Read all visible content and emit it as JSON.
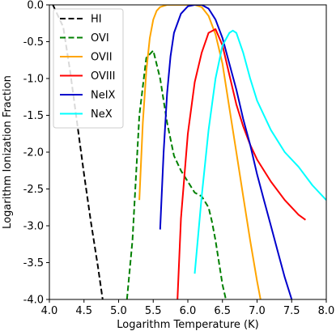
{
  "chart_data": {
    "type": "line",
    "xlabel": "Logarithm Temperature (K)",
    "ylabel": "Logarithm Ionization Fraction",
    "xlim": [
      4.0,
      8.0
    ],
    "ylim": [
      -4.0,
      0.0
    ],
    "xticks": [
      "4.0",
      "4.5",
      "5.0",
      "5.5",
      "6.0",
      "6.5",
      "7.0",
      "7.5",
      "8.0"
    ],
    "yticks": [
      "0.0",
      "-0.5",
      "-1.0",
      "-1.5",
      "-2.0",
      "-2.5",
      "-3.0",
      "-3.5",
      "-4.0"
    ],
    "grid": false,
    "legend_position": "top-left",
    "series": [
      {
        "name": "HI",
        "color": "#000000",
        "style": "dashed",
        "x": [
          4.05,
          4.2,
          4.3,
          4.4,
          4.5,
          4.6,
          4.7,
          4.77
        ],
        "y": [
          0.0,
          -0.3,
          -0.9,
          -1.6,
          -2.3,
          -2.95,
          -3.55,
          -4.0
        ]
      },
      {
        "name": "OVI",
        "color": "#008000",
        "style": "dashed",
        "x": [
          5.12,
          5.2,
          5.3,
          5.4,
          5.5,
          5.6,
          5.7,
          5.8,
          5.9,
          6.0,
          6.1,
          6.2,
          6.3,
          6.35,
          6.4,
          6.45,
          6.5,
          6.55
        ],
        "y": [
          -4.0,
          -3.2,
          -1.5,
          -0.72,
          -0.62,
          -1.0,
          -1.6,
          -2.05,
          -2.25,
          -2.4,
          -2.55,
          -2.6,
          -2.75,
          -2.95,
          -3.2,
          -3.5,
          -3.8,
          -4.0
        ]
      },
      {
        "name": "OVII",
        "color": "#FFA500",
        "style": "solid",
        "x": [
          5.3,
          5.35,
          5.4,
          5.45,
          5.5,
          5.55,
          5.6,
          5.7,
          5.8,
          5.9,
          6.0,
          6.1,
          6.2,
          6.3,
          6.4,
          6.5,
          6.6,
          6.7,
          6.8,
          6.9,
          7.0,
          7.05
        ],
        "y": [
          -2.65,
          -1.6,
          -0.9,
          -0.45,
          -0.2,
          -0.08,
          -0.03,
          0.0,
          0.0,
          0.0,
          0.0,
          0.0,
          -0.03,
          -0.15,
          -0.4,
          -0.8,
          -1.4,
          -2.0,
          -2.6,
          -3.2,
          -3.75,
          -4.0
        ]
      },
      {
        "name": "OVIII",
        "color": "#FF0000",
        "style": "solid",
        "x": [
          5.85,
          5.9,
          6.0,
          6.1,
          6.2,
          6.3,
          6.4,
          6.5,
          6.6,
          6.7,
          6.8,
          6.9,
          7.0,
          7.2,
          7.4,
          7.6,
          7.7
        ],
        "y": [
          -4.0,
          -2.9,
          -1.75,
          -1.05,
          -0.65,
          -0.38,
          -0.33,
          -0.55,
          -0.95,
          -1.35,
          -1.65,
          -1.9,
          -2.1,
          -2.4,
          -2.65,
          -2.85,
          -2.92
        ]
      },
      {
        "name": "NeIX",
        "color": "#0000CC",
        "style": "solid",
        "x": [
          5.6,
          5.65,
          5.7,
          5.75,
          5.8,
          5.9,
          6.0,
          6.1,
          6.2,
          6.3,
          6.4,
          6.5,
          6.6,
          6.7,
          6.8,
          6.9,
          7.0,
          7.1,
          7.2,
          7.3,
          7.4,
          7.5
        ],
        "y": [
          -3.05,
          -2.0,
          -1.2,
          -0.7,
          -0.38,
          -0.12,
          -0.02,
          0.0,
          0.0,
          -0.05,
          -0.2,
          -0.45,
          -0.8,
          -1.15,
          -1.55,
          -1.9,
          -2.3,
          -2.65,
          -3.0,
          -3.35,
          -3.7,
          -4.0
        ]
      },
      {
        "name": "NeX",
        "color": "#00FFFF",
        "style": "solid",
        "x": [
          6.1,
          6.2,
          6.3,
          6.4,
          6.5,
          6.6,
          6.65,
          6.7,
          6.8,
          6.9,
          7.0,
          7.2,
          7.4,
          7.6,
          7.8,
          8.0
        ],
        "y": [
          -3.65,
          -2.6,
          -1.7,
          -1.0,
          -0.55,
          -0.38,
          -0.35,
          -0.38,
          -0.65,
          -1.0,
          -1.3,
          -1.7,
          -2.0,
          -2.2,
          -2.45,
          -2.65
        ]
      }
    ]
  }
}
